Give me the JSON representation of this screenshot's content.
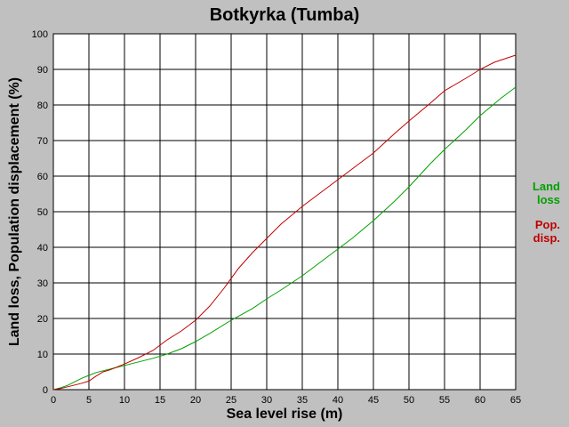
{
  "chart_data": {
    "type": "line",
    "title": "Botkyrka (Tumba)",
    "xlabel": "Sea level rise (m)",
    "ylabel": "Land loss, Population displacement (%)",
    "xlim": [
      0,
      65
    ],
    "ylim": [
      0,
      100
    ],
    "x_ticks": [
      "0",
      "5",
      "10",
      "15",
      "20",
      "25",
      "30",
      "35",
      "40",
      "45",
      "50",
      "55",
      "60",
      "65"
    ],
    "y_ticks": [
      "0",
      "10",
      "20",
      "30",
      "40",
      "50",
      "60",
      "70",
      "80",
      "90",
      "100"
    ],
    "grid": true,
    "legend_position": "right",
    "series": [
      {
        "legend_line1": "Land",
        "legend_line2": "loss",
        "color": "#00a000",
        "x": [
          0,
          1,
          2,
          3,
          4,
          5,
          6,
          7,
          8,
          10,
          12,
          14,
          16,
          18,
          20,
          22,
          25,
          28,
          30,
          32,
          35,
          38,
          40,
          42,
          45,
          48,
          50,
          53,
          55,
          58,
          60,
          63,
          65
        ],
        "y": [
          0,
          0.5,
          1.2,
          2.2,
          3.2,
          4,
          4.8,
          5.3,
          5.8,
          6.8,
          7.8,
          8.8,
          10,
          11.5,
          13.5,
          15.8,
          19.5,
          22.8,
          25.5,
          28,
          32,
          36.5,
          39.5,
          42.5,
          47.5,
          53,
          57,
          63.5,
          67.5,
          73,
          77,
          82,
          85
        ]
      },
      {
        "legend_line1": "Pop.",
        "legend_line2": "disp.",
        "color": "#c00000",
        "x": [
          0,
          1,
          2,
          3,
          4,
          5,
          6,
          7,
          8,
          10,
          12,
          14,
          16,
          18,
          20,
          22,
          24,
          26,
          28,
          30,
          32,
          35,
          38,
          40,
          42,
          45,
          48,
          50,
          53,
          55,
          58,
          60,
          62,
          65
        ],
        "y": [
          0,
          0.3,
          0.8,
          1.3,
          1.8,
          2.4,
          3.8,
          5,
          5.6,
          7.2,
          9,
          11,
          14,
          16.5,
          19.5,
          23.5,
          28.5,
          34,
          38.5,
          42.5,
          46.5,
          51.5,
          56,
          59,
          62,
          66.5,
          72,
          75.5,
          80.5,
          84,
          87.5,
          90,
          92,
          94
        ]
      }
    ]
  }
}
